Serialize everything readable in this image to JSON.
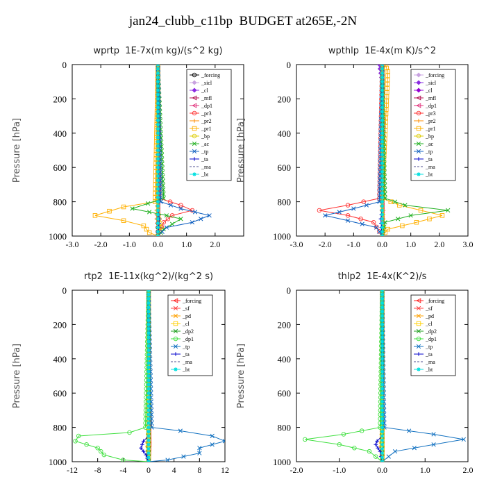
{
  "page": {
    "title": "jan24_clubb_c11bp  BUDGET at265E,-2N"
  },
  "chart_data": [
    {
      "type": "line",
      "title": "wprtp  1E-7x(m kg)/(s^2 kg)",
      "ylabel": "Pressure [hPa]",
      "xlim": [
        -3.0,
        3.0
      ],
      "ylim": [
        1000,
        0
      ],
      "xticks": [
        "-3.0",
        "-2.0",
        "-1.0",
        "0.0",
        "1.0",
        "2.0"
      ],
      "yticks": [
        "0",
        "200",
        "400",
        "600",
        "800",
        "1000"
      ],
      "legend_position": "top-right",
      "series": [
        {
          "name": "_forcing",
          "color": "#000000",
          "marker": "o",
          "x": [
            0,
            0,
            0,
            0
          ],
          "y": [
            0,
            600,
            800,
            1000
          ]
        },
        {
          "name": "_sicl",
          "color": "#c8a2e0",
          "marker": "d",
          "x": [
            0,
            0
          ],
          "y": [
            0,
            1000
          ]
        },
        {
          "name": "_cl",
          "color": "#8a2be2",
          "marker": "d",
          "x": [
            0,
            0
          ],
          "y": [
            0,
            1000
          ]
        },
        {
          "name": "_mfl",
          "color": "#b01050",
          "marker": "<",
          "x": [
            0,
            0
          ],
          "y": [
            0,
            1000
          ]
        },
        {
          "name": "_dp1",
          "color": "#e0307a",
          "marker": "<",
          "x": [
            0,
            0
          ],
          "y": [
            0,
            1000
          ]
        },
        {
          "name": "_pr3",
          "color": "#ff3030",
          "marker": "o",
          "x": [
            0,
            0.05,
            0.8,
            1.2,
            0.5,
            0.2,
            0
          ],
          "y": [
            0,
            780,
            820,
            850,
            880,
            920,
            1000
          ]
        },
        {
          "name": "_pr2",
          "color": "#ff8c00",
          "marker": "+",
          "x": [
            0,
            0,
            -0.05,
            -0.05,
            0
          ],
          "y": [
            0,
            800,
            850,
            900,
            1000
          ]
        },
        {
          "name": "_pr1",
          "color": "#ffb000",
          "marker": "s",
          "x": [
            0,
            -0.1,
            -1.2,
            -2.2,
            -1.2,
            -0.5,
            -0.3,
            0
          ],
          "y": [
            0,
            800,
            830,
            880,
            910,
            940,
            980,
            1000
          ]
        },
        {
          "name": "_bp",
          "color": "#ddcc00",
          "marker": "o",
          "x": [
            0,
            0,
            0.1,
            0
          ],
          "y": [
            0,
            850,
            950,
            1000
          ]
        },
        {
          "name": "_ac",
          "color": "#20b020",
          "marker": "x",
          "x": [
            0,
            0.2,
            -0.9,
            0.3,
            0.8,
            0.5,
            0.2,
            0
          ],
          "y": [
            0,
            780,
            840,
            880,
            900,
            930,
            960,
            1000
          ]
        },
        {
          "name": "_tp",
          "color": "#1060c0",
          "marker": "x",
          "x": [
            0,
            0.1,
            0.8,
            1.8,
            1.2,
            0.3,
            0
          ],
          "y": [
            0,
            800,
            840,
            880,
            920,
            950,
            1000
          ]
        },
        {
          "name": "_ta",
          "color": "#0000cc",
          "marker": "+",
          "x": [
            0,
            0,
            0.05,
            0
          ],
          "y": [
            0,
            850,
            900,
            1000
          ]
        },
        {
          "name": "_ma",
          "color": "#505090",
          "marker": "-",
          "x": [
            0,
            0
          ],
          "y": [
            0,
            1000
          ]
        },
        {
          "name": "_bt",
          "color": "#00e0e0",
          "marker": "*",
          "x": [
            0,
            0
          ],
          "y": [
            0,
            1000
          ]
        }
      ]
    },
    {
      "type": "line",
      "title": "wpthlp  1E-4x(m K)/s^2",
      "ylabel": "Pressure [hPa]",
      "xlim": [
        -3.0,
        3.0
      ],
      "ylim": [
        1000,
        0
      ],
      "xticks": [
        "-3.0",
        "-2.0",
        "-1.0",
        "0.0",
        "1.0",
        "2.0",
        "3.0"
      ],
      "yticks": [
        "0",
        "200",
        "400",
        "600",
        "800",
        "1000"
      ],
      "legend_position": "top-right",
      "series": [
        {
          "name": "_forcing",
          "color": "#c8a2e0",
          "marker": "d",
          "x": [
            0,
            0
          ],
          "y": [
            0,
            1000
          ]
        },
        {
          "name": "_sicl",
          "color": "#8a2be2",
          "marker": "d",
          "x": [
            -0.1,
            0,
            0
          ],
          "y": [
            0,
            100,
            1000
          ]
        },
        {
          "name": "_cl",
          "color": "#9400d3",
          "marker": "d",
          "x": [
            0,
            0
          ],
          "y": [
            0,
            1000
          ]
        },
        {
          "name": "_mfl",
          "color": "#b01050",
          "marker": "<",
          "x": [
            0,
            0
          ],
          "y": [
            0,
            1000
          ]
        },
        {
          "name": "_dp1",
          "color": "#e0307a",
          "marker": "<",
          "x": [
            0,
            0
          ],
          "y": [
            0,
            1000
          ]
        },
        {
          "name": "_pr3",
          "color": "#ff3030",
          "marker": "o",
          "x": [
            0,
            -0.1,
            -1.2,
            -2.2,
            -1.2,
            -0.3,
            0
          ],
          "y": [
            0,
            780,
            820,
            850,
            880,
            920,
            1000
          ]
        },
        {
          "name": "_pr2",
          "color": "#ff8c00",
          "marker": "+",
          "x": [
            0,
            0,
            0.05,
            0
          ],
          "y": [
            0,
            800,
            850,
            1000
          ]
        },
        {
          "name": "_pr1",
          "color": "#ffb000",
          "marker": "s",
          "x": [
            0.1,
            0.2,
            0,
            0.6,
            2.1,
            1.2,
            0.2,
            0
          ],
          "y": [
            0,
            40,
            780,
            820,
            880,
            920,
            960,
            1000
          ]
        },
        {
          "name": "_bp",
          "color": "#ddcc00",
          "marker": "o",
          "x": [
            0,
            0,
            0.05,
            0
          ],
          "y": [
            0,
            850,
            950,
            1000
          ]
        },
        {
          "name": "_ac",
          "color": "#20b020",
          "marker": "x",
          "x": [
            0,
            0.1,
            0.8,
            2.3,
            1.0,
            0.1,
            0
          ],
          "y": [
            0,
            780,
            820,
            850,
            880,
            920,
            1000
          ]
        },
        {
          "name": "_tp",
          "color": "#1060c0",
          "marker": "x",
          "x": [
            0,
            -0.1,
            -1.0,
            -2.0,
            -1.2,
            -0.2,
            0
          ],
          "y": [
            0,
            800,
            840,
            880,
            910,
            950,
            1000
          ]
        },
        {
          "name": "_ta",
          "color": "#0000cc",
          "marker": "+",
          "x": [
            0,
            0,
            -0.05,
            0
          ],
          "y": [
            0,
            850,
            900,
            1000
          ]
        },
        {
          "name": "_ma",
          "color": "#505090",
          "marker": "-",
          "x": [
            0,
            0
          ],
          "y": [
            0,
            1000
          ]
        },
        {
          "name": "_bt",
          "color": "#00e0e0",
          "marker": "*",
          "x": [
            0,
            0
          ],
          "y": [
            0,
            1000
          ]
        }
      ]
    },
    {
      "type": "line",
      "title": "rtp2  1E-11x(kg^2)/(kg^2 s)",
      "ylabel": "Pressure [hPa]",
      "xlim": [
        -12,
        12
      ],
      "ylim": [
        1000,
        0
      ],
      "xticks": [
        "-12",
        "-8",
        "-4",
        "0",
        "4",
        "8",
        "12"
      ],
      "yticks": [
        "0",
        "200",
        "400",
        "600",
        "800",
        "1000"
      ],
      "legend_position": "top-right",
      "series": [
        {
          "name": "_forcing",
          "color": "#ff2020",
          "marker": "<",
          "x": [
            0,
            0,
            0.1,
            0
          ],
          "y": [
            0,
            600,
            900,
            1000
          ]
        },
        {
          "name": "_sf",
          "color": "#ff4040",
          "marker": "x",
          "x": [
            0,
            0
          ],
          "y": [
            0,
            1000
          ]
        },
        {
          "name": "_pd",
          "color": "#ffa000",
          "marker": "x",
          "x": [
            0,
            0,
            -0.2,
            0
          ],
          "y": [
            0,
            800,
            900,
            1000
          ]
        },
        {
          "name": "_cl",
          "color": "#ffd000",
          "marker": "s",
          "x": [
            0,
            0
          ],
          "y": [
            0,
            1000
          ]
        },
        {
          "name": "_dp2",
          "color": "#20a020",
          "marker": "x",
          "x": [
            0,
            0
          ],
          "y": [
            0,
            1000
          ]
        },
        {
          "name": "_dp1",
          "color": "#40e040",
          "marker": "o",
          "x": [
            0,
            -0.5,
            -3,
            -11,
            -11.5,
            -8,
            -7,
            -4,
            0
          ],
          "y": [
            0,
            800,
            830,
            850,
            880,
            920,
            960,
            990,
            1000
          ]
        },
        {
          "name": "_tp",
          "color": "#1070c0",
          "marker": "x",
          "x": [
            0,
            0.5,
            5,
            10,
            12,
            8,
            8,
            3,
            0
          ],
          "y": [
            0,
            800,
            820,
            850,
            880,
            920,
            950,
            990,
            1000
          ]
        },
        {
          "name": "_ta",
          "color": "#0000cc",
          "marker": "+",
          "x": [
            0,
            0,
            -0.8,
            -1.2,
            -0.4,
            0
          ],
          "y": [
            0,
            850,
            880,
            920,
            960,
            1000
          ]
        },
        {
          "name": "_ma",
          "color": "#505090",
          "marker": "-",
          "x": [
            0,
            0
          ],
          "y": [
            0,
            1000
          ]
        },
        {
          "name": "_bt",
          "color": "#00e0e0",
          "marker": "*",
          "x": [
            0,
            0
          ],
          "y": [
            0,
            1000
          ]
        }
      ]
    },
    {
      "type": "line",
      "title": "thlp2  1E-4x(K^2)/s",
      "ylabel": "Pressure [hPa]",
      "xlim": [
        -2.0,
        2.0
      ],
      "ylim": [
        1000,
        0
      ],
      "xticks": [
        "-2.0",
        "-1.0",
        "0.0",
        "1.0",
        "2.0"
      ],
      "yticks": [
        "0",
        "200",
        "400",
        "600",
        "800",
        "1000"
      ],
      "legend_position": "top-right",
      "series": [
        {
          "name": "_forcing",
          "color": "#ff2020",
          "marker": "<",
          "x": [
            0,
            0
          ],
          "y": [
            0,
            1000
          ]
        },
        {
          "name": "_sf",
          "color": "#ff4040",
          "marker": "x",
          "x": [
            0,
            0
          ],
          "y": [
            0,
            1000
          ]
        },
        {
          "name": "_pd",
          "color": "#ffa000",
          "marker": "x",
          "x": [
            0,
            0,
            -0.03,
            0
          ],
          "y": [
            0,
            800,
            900,
            1000
          ]
        },
        {
          "name": "_cl",
          "color": "#ffd000",
          "marker": "s",
          "x": [
            0,
            0
          ],
          "y": [
            0,
            1000
          ]
        },
        {
          "name": "_dp2",
          "color": "#20a020",
          "marker": "x",
          "x": [
            0,
            0
          ],
          "y": [
            0,
            1000
          ]
        },
        {
          "name": "_dp1",
          "color": "#40e040",
          "marker": "o",
          "x": [
            0,
            -0.05,
            -0.9,
            -1.8,
            -1.0,
            -0.3,
            0
          ],
          "y": [
            0,
            800,
            840,
            870,
            900,
            940,
            1000
          ]
        },
        {
          "name": "_tp",
          "color": "#1070c0",
          "marker": "x",
          "x": [
            0,
            0.05,
            1.2,
            1.9,
            1.2,
            0.3,
            0
          ],
          "y": [
            0,
            800,
            840,
            870,
            900,
            940,
            1000
          ]
        },
        {
          "name": "_ta",
          "color": "#0000cc",
          "marker": "+",
          "x": [
            0,
            0,
            -0.12,
            -0.15,
            -0.05,
            0
          ],
          "y": [
            0,
            850,
            880,
            900,
            940,
            1000
          ]
        },
        {
          "name": "_ma",
          "color": "#505090",
          "marker": "-",
          "x": [
            0,
            0
          ],
          "y": [
            0,
            1000
          ]
        },
        {
          "name": "_bt",
          "color": "#00e0e0",
          "marker": "*",
          "x": [
            0,
            0
          ],
          "y": [
            0,
            1000
          ]
        }
      ]
    }
  ]
}
